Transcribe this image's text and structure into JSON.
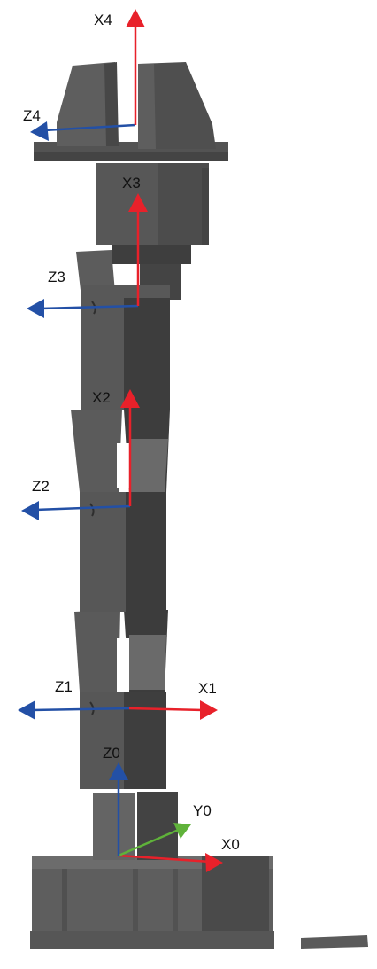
{
  "colors": {
    "arm_dark": "#3e3e3e",
    "arm_mid": "#585858",
    "arm_light": "#6a6a6a",
    "arm_edge": "#4a4a4a",
    "x_axis": "#e8212a",
    "y_axis": "#5fb23a",
    "z_axis": "#2350a6",
    "label": "#111111"
  },
  "frames": [
    {
      "id": "frame0",
      "x_label": "X0",
      "y_label": "Y0",
      "z_label": "Z0"
    },
    {
      "id": "frame1",
      "x_label": "X1",
      "z_label": "Z1"
    },
    {
      "id": "frame2",
      "x_label": "X2",
      "z_label": "Z2"
    },
    {
      "id": "frame3",
      "x_label": "X3",
      "z_label": "Z3"
    },
    {
      "id": "frame4",
      "x_label": "X4",
      "z_label": "Z4"
    }
  ]
}
